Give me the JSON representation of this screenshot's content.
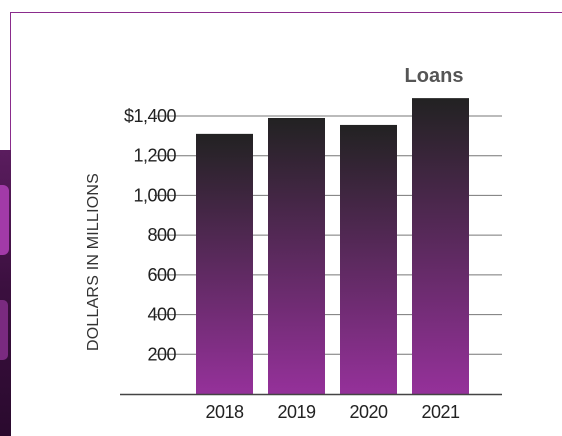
{
  "colors": {
    "accent": "#8a2c8c",
    "bar_top": "#222222",
    "bar_bottom": "#95319a",
    "gridline": "#777777",
    "axis": "#444444"
  },
  "chart_data": {
    "type": "bar",
    "title": "Loans",
    "ylabel": "DOLLARS IN MILLIONS",
    "xlabel": "",
    "categories": [
      "2018",
      "2019",
      "2020",
      "2021"
    ],
    "values": [
      1310,
      1390,
      1355,
      1490
    ],
    "ylim": [
      0,
      1400
    ],
    "yticks": [
      200,
      400,
      600,
      800,
      1000,
      1200,
      1400
    ],
    "ytick_labels": [
      "200",
      "400",
      "600",
      "800",
      "1,000",
      "1,200",
      "$1,400"
    ],
    "grid": true
  }
}
